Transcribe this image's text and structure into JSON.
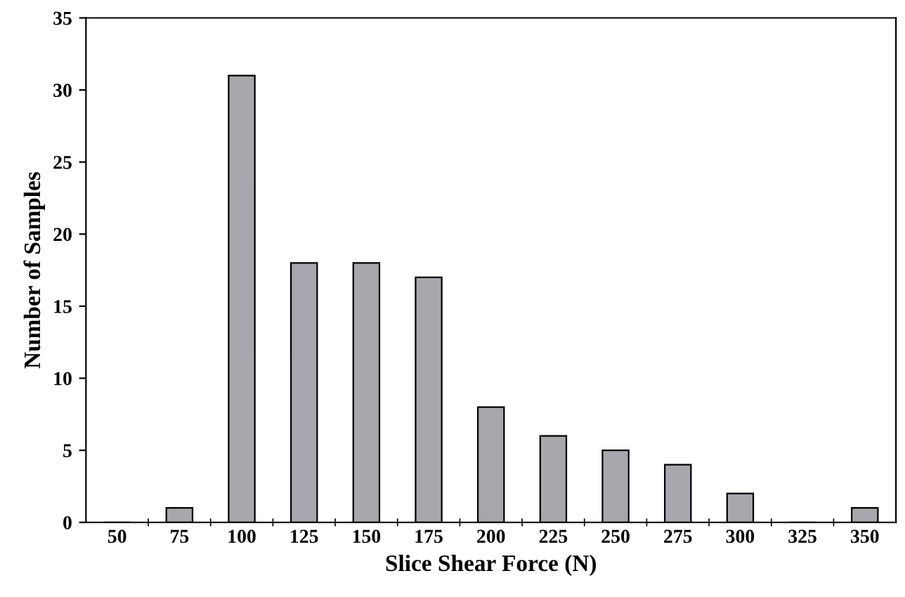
{
  "chart_data": {
    "type": "bar",
    "xlabel": "Slice Shear Force (N)",
    "ylabel": "Number of Samples",
    "categories": [
      "50",
      "75",
      "100",
      "125",
      "150",
      "175",
      "200",
      "225",
      "250",
      "275",
      "300",
      "325",
      "350"
    ],
    "values": [
      0,
      1,
      31,
      18,
      18,
      17,
      8,
      6,
      5,
      4,
      2,
      0,
      1
    ],
    "color": "#a7a7ad",
    "ylim": [
      0,
      35
    ],
    "yticks": [
      0,
      5,
      10,
      15,
      20,
      25,
      30,
      35
    ],
    "grid": false
  }
}
